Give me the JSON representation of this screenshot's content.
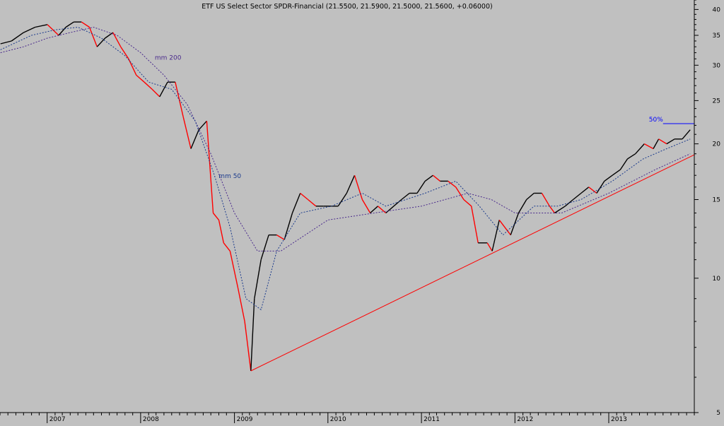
{
  "chart_data": {
    "type": "line",
    "title": "ETF US Select Sector SPDR-Financial (21.5500, 21.5900, 21.5000, 21.5600, +0.06000)",
    "x_range": [
      "2006-07-01",
      "2013-12-01"
    ],
    "x_tick_labels": [
      "2007",
      "2008",
      "2009",
      "2010",
      "2011",
      "2012",
      "2013"
    ],
    "y_scale": "log",
    "ylim": [
      5,
      42
    ],
    "y_tick_labels": [
      "40",
      "35",
      "30",
      "25",
      "20",
      "15",
      "10",
      "5"
    ],
    "y_ticks": [
      40,
      35,
      30,
      25,
      20,
      15,
      10,
      5
    ],
    "grid": false,
    "annotations": [
      {
        "text": "mm 200",
        "series": "moving-average-200"
      },
      {
        "text": "mm 50",
        "series": "moving-average-50"
      },
      {
        "text": "50%",
        "series": "target-line"
      }
    ],
    "series": [
      {
        "key": "price",
        "color": "#000000",
        "down_color": "#ff0000",
        "x": [
          "2006-07-03",
          "2006-08-15",
          "2006-10-01",
          "2006-11-15",
          "2007-01-02",
          "2007-02-15",
          "2007-03-15",
          "2007-04-15",
          "2007-05-15",
          "2007-06-15",
          "2007-07-15",
          "2007-08-15",
          "2007-09-15",
          "2007-10-15",
          "2007-11-15",
          "2007-12-15",
          "2008-01-15",
          "2008-02-15",
          "2008-03-15",
          "2008-04-15",
          "2008-05-15",
          "2008-06-15",
          "2008-07-15",
          "2008-08-15",
          "2008-09-15",
          "2008-10-10",
          "2008-11-01",
          "2008-11-20",
          "2008-12-15",
          "2009-01-15",
          "2009-02-10",
          "2009-03-06",
          "2009-03-20",
          "2009-04-15",
          "2009-05-15",
          "2009-06-15",
          "2009-07-15",
          "2009-08-15",
          "2009-09-15",
          "2009-10-15",
          "2009-11-15",
          "2009-12-15",
          "2010-01-15",
          "2010-02-10",
          "2010-03-15",
          "2010-04-15",
          "2010-05-15",
          "2010-06-15",
          "2010-07-15",
          "2010-08-15",
          "2010-09-15",
          "2010-10-15",
          "2010-11-15",
          "2010-12-15",
          "2011-01-15",
          "2011-02-15",
          "2011-03-15",
          "2011-04-15",
          "2011-05-15",
          "2011-06-15",
          "2011-07-15",
          "2011-08-10",
          "2011-09-15",
          "2011-10-04",
          "2011-11-01",
          "2011-12-15",
          "2012-01-15",
          "2012-02-15",
          "2012-03-15",
          "2012-04-15",
          "2012-05-15",
          "2012-06-04",
          "2012-07-15",
          "2012-08-15",
          "2012-09-15",
          "2012-10-15",
          "2012-11-15",
          "2012-12-15",
          "2013-01-15",
          "2013-02-15",
          "2013-03-15",
          "2013-04-15",
          "2013-05-20",
          "2013-06-24",
          "2013-07-15",
          "2013-08-15",
          "2013-09-15",
          "2013-10-15",
          "2013-11-15"
        ],
        "values": [
          33.5,
          34.0,
          35.5,
          36.5,
          37.0,
          35.0,
          36.5,
          37.5,
          37.5,
          36.5,
          33.0,
          34.5,
          35.5,
          33.0,
          31.0,
          28.5,
          27.5,
          26.5,
          25.5,
          27.5,
          27.5,
          23.0,
          19.5,
          21.5,
          22.5,
          14.0,
          13.5,
          12.0,
          11.5,
          9.5,
          8.0,
          6.2,
          9.0,
          11.0,
          12.5,
          12.5,
          12.2,
          14.0,
          15.5,
          15.0,
          14.5,
          14.5,
          14.5,
          14.5,
          15.5,
          17.0,
          15.0,
          14.0,
          14.5,
          14.0,
          14.5,
          15.0,
          15.5,
          15.5,
          16.5,
          17.0,
          16.5,
          16.5,
          16.0,
          15.0,
          14.5,
          12.0,
          12.0,
          11.5,
          13.5,
          12.5,
          14.0,
          15.0,
          15.5,
          15.5,
          14.5,
          14.0,
          14.5,
          15.0,
          15.5,
          16.0,
          15.5,
          16.5,
          17.0,
          17.5,
          18.5,
          19.0,
          20.0,
          19.5,
          20.5,
          20.0,
          20.5,
          20.5,
          21.5
        ]
      },
      {
        "key": "moving-average-200",
        "color": "#4a2a8c",
        "dash": "dotted",
        "x": [
          "2006-07-03",
          "2006-10-01",
          "2007-01-02",
          "2007-04-01",
          "2007-07-01",
          "2007-10-01",
          "2008-01-01",
          "2008-04-01",
          "2008-07-01",
          "2008-10-01",
          "2009-01-01",
          "2009-04-01",
          "2009-07-01",
          "2010-01-01",
          "2010-07-01",
          "2011-01-01",
          "2011-07-01",
          "2011-10-01",
          "2012-01-01",
          "2012-07-01",
          "2013-01-01",
          "2013-07-01",
          "2013-11-15"
        ],
        "values": [
          32.0,
          33.0,
          34.5,
          35.5,
          36.5,
          35.0,
          32.0,
          28.5,
          24.5,
          19.0,
          14.0,
          11.5,
          11.5,
          13.5,
          14.0,
          14.5,
          15.5,
          15.0,
          14.0,
          14.0,
          15.5,
          17.5,
          19.0
        ]
      },
      {
        "key": "moving-average-50",
        "color": "#1a3a8c",
        "dash": "dotted",
        "x": [
          "2006-07-03",
          "2006-11-01",
          "2007-02-01",
          "2007-05-01",
          "2007-08-01",
          "2007-11-01",
          "2008-02-01",
          "2008-05-01",
          "2008-08-01",
          "2008-10-15",
          "2008-12-15",
          "2009-02-15",
          "2009-04-15",
          "2009-06-15",
          "2009-09-15",
          "2010-01-15",
          "2010-05-15",
          "2010-08-15",
          "2011-01-15",
          "2011-05-15",
          "2011-08-15",
          "2011-11-15",
          "2012-03-15",
          "2012-06-15",
          "2012-09-15",
          "2013-01-15",
          "2013-05-15",
          "2013-08-15",
          "2013-11-15"
        ],
        "values": [
          32.5,
          35.0,
          36.0,
          36.5,
          34.5,
          31.5,
          27.5,
          26.5,
          22.5,
          17.0,
          13.0,
          9.0,
          8.5,
          11.5,
          14.0,
          14.5,
          15.5,
          14.5,
          15.5,
          16.5,
          14.5,
          12.5,
          14.5,
          14.5,
          15.0,
          16.5,
          18.5,
          19.5,
          20.5
        ]
      },
      {
        "key": "support-trendline",
        "color": "#ff0000",
        "x": [
          "2009-03-06",
          "2013-12-01"
        ],
        "values": [
          6.2,
          18.9
        ]
      },
      {
        "key": "target-line",
        "color": "#0000ff",
        "x": [
          "2013-08-01",
          "2013-12-01"
        ],
        "values": [
          22.2,
          22.2
        ]
      }
    ]
  }
}
